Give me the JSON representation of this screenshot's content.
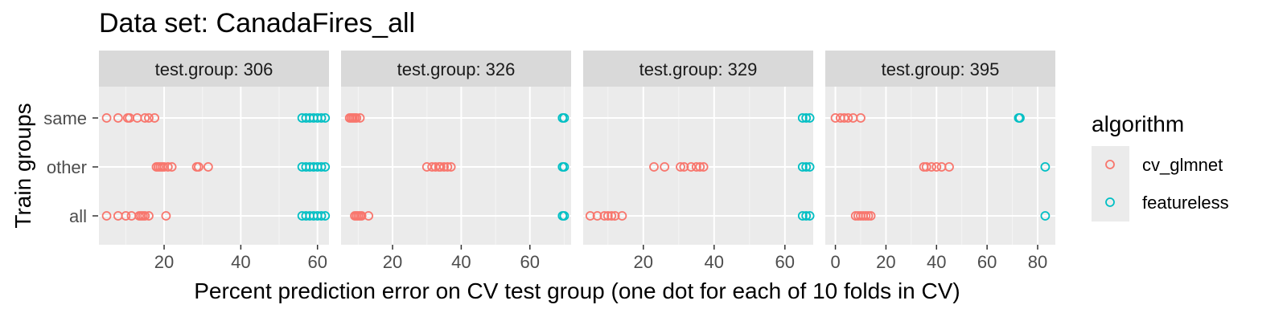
{
  "chart_data": {
    "type": "scatter",
    "title": "Data set: CanadaFires_all",
    "xlabel": "Percent prediction error on CV test group (one dot for each of 10 folds in CV)",
    "ylabel": "Train groups",
    "y_categories": [
      "same",
      "other",
      "all"
    ],
    "facet_prefix": "test.group: ",
    "legend": {
      "title": "algorithm",
      "position": "right",
      "entries": [
        {
          "name": "cv_glmnet",
          "color": "#F8766D"
        },
        {
          "name": "featureless",
          "color": "#00BFC4"
        }
      ]
    },
    "facets": [
      {
        "label": "306",
        "xlim": [
          3,
          63
        ],
        "xticks": [
          20,
          40,
          60
        ],
        "series": [
          {
            "name": "cv_glmnet",
            "points": {
              "same": [
                5,
                8,
                10.5,
                11,
                13,
                15,
                16,
                17.5
              ],
              "other": [
                18,
                18.5,
                19,
                19.5,
                20,
                21,
                22,
                28.5,
                29,
                31.5
              ],
              "all": [
                5,
                8,
                10,
                11.5,
                13.5,
                14,
                14.5,
                15,
                16,
                20.5
              ]
            }
          },
          {
            "name": "featureless",
            "points": {
              "same": [
                56,
                57,
                58,
                59,
                60,
                61,
                62
              ],
              "other": [
                56,
                57,
                58,
                59,
                60,
                61,
                62
              ],
              "all": [
                56,
                57,
                58,
                59,
                60,
                61,
                62
              ]
            }
          }
        ]
      },
      {
        "label": "326",
        "xlim": [
          5,
          72
        ],
        "xticks": [
          20,
          40,
          60
        ],
        "series": [
          {
            "name": "cv_glmnet",
            "points": {
              "same": [
                7.5,
                8,
                8.5,
                9,
                9.5,
                10.5
              ],
              "other": [
                30,
                31.5,
                32.5,
                33.5,
                34,
                35,
                36,
                37
              ],
              "all": [
                9,
                9.5,
                10,
                10.5,
                11,
                13
              ]
            }
          },
          {
            "name": "featureless",
            "points": {
              "same": [
                69.5,
                70
              ],
              "other": [
                69.5,
                70
              ],
              "all": [
                69.5,
                70
              ]
            }
          }
        ]
      },
      {
        "label": "329",
        "xlim": [
          3,
          68
        ],
        "xticks": [
          20,
          40,
          60
        ],
        "series": [
          {
            "name": "cv_glmnet",
            "points": {
              "same": [],
              "other": [
                23,
                26,
                30.5,
                31.5,
                33.5,
                35,
                36,
                37
              ],
              "all": [
                5,
                7,
                9,
                10,
                11,
                12,
                14
              ]
            }
          },
          {
            "name": "featureless",
            "points": {
              "same": [
                65,
                66,
                67
              ],
              "other": [
                65,
                66,
                67
              ],
              "all": [
                65,
                66,
                67
              ]
            }
          }
        ]
      },
      {
        "label": "395",
        "xlim": [
          -4,
          87
        ],
        "xticks": [
          0,
          20,
          40,
          60,
          80
        ],
        "series": [
          {
            "name": "cv_glmnet",
            "points": {
              "same": [
                0,
                2,
                3.5,
                5,
                7,
                10
              ],
              "other": [
                35,
                36,
                38,
                40,
                42,
                45
              ],
              "all": [
                8,
                9,
                10,
                11,
                12,
                13,
                14
              ]
            }
          },
          {
            "name": "featureless",
            "points": {
              "same": [
                72.5,
                73
              ],
              "other": [
                83
              ],
              "all": [
                83
              ]
            }
          }
        ]
      }
    ]
  }
}
